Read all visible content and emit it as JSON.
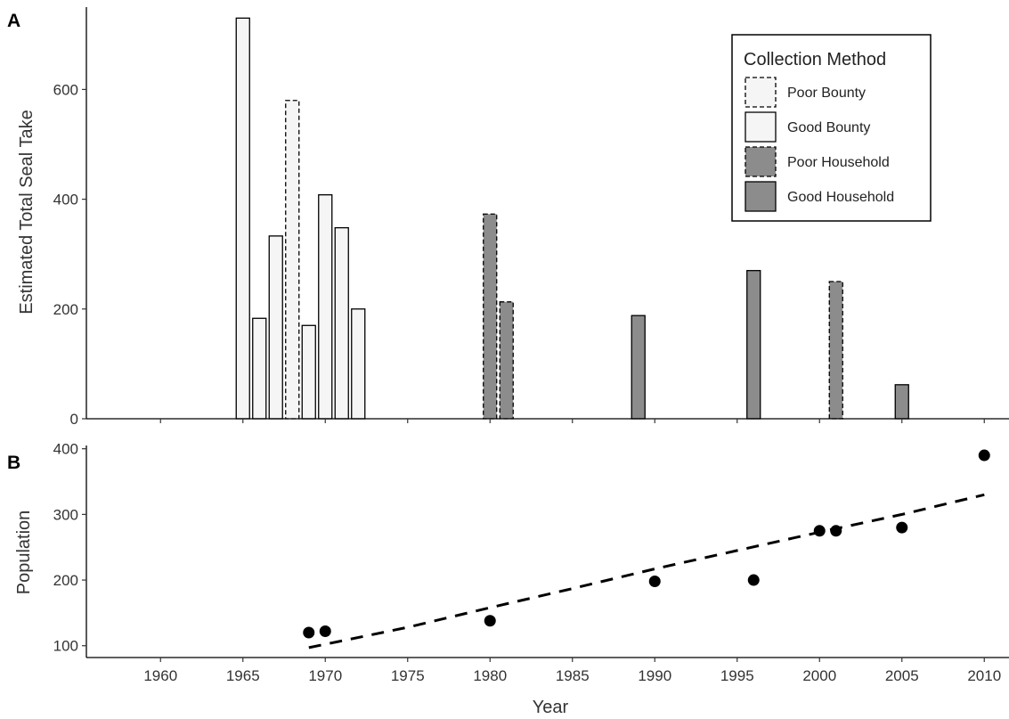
{
  "chart_data": [
    {
      "panel": "A",
      "type": "bar",
      "ylabel": "Estimated Total Seal Take",
      "xlim": [
        1955.5,
        2011.5
      ],
      "ylim": [
        0,
        750
      ],
      "yticks": [
        0,
        200,
        400,
        600
      ],
      "legend": {
        "title": "Collection Method",
        "placement": "top-right",
        "entries": [
          {
            "key": "poor_bounty",
            "label": "Poor Bounty"
          },
          {
            "key": "good_bounty",
            "label": "Good Bounty"
          },
          {
            "key": "poor_household",
            "label": "Poor Household"
          },
          {
            "key": "good_household",
            "label": "Good Household"
          }
        ]
      },
      "styles": {
        "poor_bounty": {
          "fill": "#f5f5f5",
          "dashed": true
        },
        "good_bounty": {
          "fill": "#f5f5f5",
          "dashed": false
        },
        "poor_household": {
          "fill": "#8c8c8c",
          "dashed": true
        },
        "good_household": {
          "fill": "#8c8c8c",
          "dashed": false
        }
      },
      "bars": [
        {
          "year": 1965,
          "value": 730,
          "method": "good_bounty"
        },
        {
          "year": 1966,
          "value": 183,
          "method": "good_bounty"
        },
        {
          "year": 1967,
          "value": 333,
          "method": "good_bounty"
        },
        {
          "year": 1968,
          "value": 580,
          "method": "poor_bounty"
        },
        {
          "year": 1969,
          "value": 170,
          "method": "good_bounty"
        },
        {
          "year": 1970,
          "value": 408,
          "method": "good_bounty"
        },
        {
          "year": 1971,
          "value": 348,
          "method": "good_bounty"
        },
        {
          "year": 1972,
          "value": 200,
          "method": "good_bounty"
        },
        {
          "year": 1980,
          "value": 373,
          "method": "poor_household"
        },
        {
          "year": 1981,
          "value": 213,
          "method": "poor_household"
        },
        {
          "year": 1989,
          "value": 188,
          "method": "good_household"
        },
        {
          "year": 1996,
          "value": 270,
          "method": "good_household"
        },
        {
          "year": 2001,
          "value": 250,
          "method": "poor_household"
        },
        {
          "year": 2005,
          "value": 62,
          "method": "good_household"
        }
      ]
    },
    {
      "panel": "B",
      "type": "scatter",
      "xlabel": "Year",
      "ylabel": "Population",
      "xlim": [
        1955.5,
        2011.5
      ],
      "ylim": [
        82,
        405
      ],
      "yticks": [
        100,
        200,
        300,
        400
      ],
      "xticks": [
        1960,
        1965,
        1970,
        1975,
        1980,
        1985,
        1990,
        1995,
        2000,
        2005,
        2010
      ],
      "points": [
        {
          "x": 1969,
          "y": 120
        },
        {
          "x": 1970,
          "y": 122
        },
        {
          "x": 1980,
          "y": 138
        },
        {
          "x": 1990,
          "y": 198
        },
        {
          "x": 1996,
          "y": 200
        },
        {
          "x": 2000,
          "y": 275
        },
        {
          "x": 2001,
          "y": 275
        },
        {
          "x": 2005,
          "y": 280
        },
        {
          "x": 2010,
          "y": 390
        }
      ],
      "trend": {
        "style": "dashed",
        "points": [
          {
            "x": 1969,
            "y": 97
          },
          {
            "x": 1975,
            "y": 128
          },
          {
            "x": 1980,
            "y": 158
          },
          {
            "x": 1985,
            "y": 187
          },
          {
            "x": 1990,
            "y": 217
          },
          {
            "x": 1995,
            "y": 245
          },
          {
            "x": 2000,
            "y": 273
          },
          {
            "x": 2005,
            "y": 300
          },
          {
            "x": 2010,
            "y": 330
          }
        ]
      }
    }
  ]
}
